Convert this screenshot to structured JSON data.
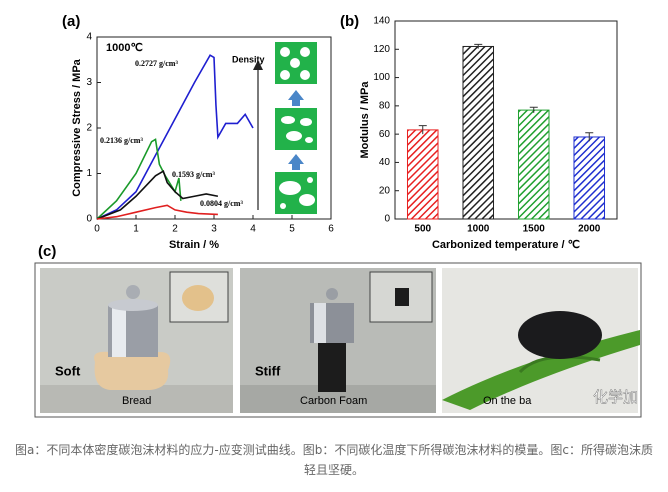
{
  "panels": [
    "(a)",
    "(b)",
    "(c)"
  ],
  "chart_data": [
    {
      "type": "line",
      "x_label": "Strain / %",
      "y_label": "Compressive Stress / MPa",
      "annotations": [
        "1000℃",
        "Density"
      ],
      "xlim": [
        0,
        6
      ],
      "xticks": [
        0,
        1,
        2,
        3,
        4,
        5,
        6
      ],
      "ylim": [
        0,
        4
      ],
      "yticks": [
        0,
        1,
        2,
        3,
        4
      ],
      "series": [
        {
          "name": "0.2727 g/cm³",
          "color": "#1f1fd0",
          "x": [
            0,
            0.5,
            1,
            1.5,
            2,
            2.5,
            2.9,
            3.0,
            3.05,
            3.1,
            3.3,
            3.6,
            3.8,
            4
          ],
          "values": [
            0,
            0.2,
            0.6,
            1.4,
            2.2,
            3,
            3.6,
            3.55,
            2.5,
            1.8,
            2.1,
            2.1,
            2.3,
            2.0
          ]
        },
        {
          "name": "0.2136 g/cm³",
          "color": "#1a9a2a",
          "x": [
            0,
            0.5,
            1,
            1.4,
            1.5,
            1.6,
            1.75,
            2,
            2.1,
            2.15
          ],
          "values": [
            0,
            0.4,
            1,
            1.7,
            1.75,
            1.2,
            0.95,
            0.6,
            0.9,
            0.4
          ]
        },
        {
          "name": "0.1593 g/cm³",
          "color": "#111111",
          "x": [
            0,
            0.6,
            1,
            1.5,
            1.7,
            1.8,
            2,
            2.2,
            2.5,
            2.8,
            3.1
          ],
          "values": [
            0,
            0.2,
            0.5,
            0.95,
            1.05,
            0.8,
            0.6,
            0.45,
            0.5,
            0.55,
            0.5
          ]
        },
        {
          "name": "0.0804 g/cm³",
          "color": "#e02020",
          "x": [
            0,
            0.5,
            1,
            1.5,
            1.8,
            2,
            2.3,
            2.6,
            3.1
          ],
          "values": [
            0,
            0.05,
            0.15,
            0.25,
            0.3,
            0.2,
            0.15,
            0.12,
            0.1
          ]
        }
      ]
    },
    {
      "type": "bar",
      "x_label": "Carbonized temperature / ℃",
      "y_label": "Modulus / MPa",
      "categories": [
        "500",
        "1000",
        "1500",
        "2000"
      ],
      "values": [
        63,
        122,
        77,
        58
      ],
      "errors": [
        3,
        1.5,
        2,
        3
      ],
      "colors": [
        "#e82020",
        "#222222",
        "#20a030",
        "#2030d0"
      ],
      "ylim": [
        0,
        140
      ],
      "yticks": [
        0,
        20,
        40,
        60,
        80,
        100,
        120,
        140
      ]
    }
  ],
  "photos": [
    {
      "state": "Soft",
      "caption": "Bread"
    },
    {
      "state": "Stiff",
      "caption": "Carbon Foam"
    },
    {
      "caption": "On the ba"
    }
  ],
  "watermark": "化学加",
  "caption": "图a：不同本体密度碳泡沫材料的应力-应变测试曲线。图b：不同碳化温度下所得碳泡沫材料的模量。图c：所得碳泡沫质轻且坚硬。"
}
